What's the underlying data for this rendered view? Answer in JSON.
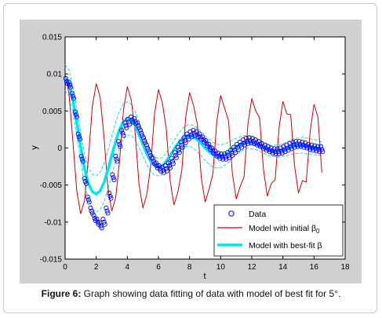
{
  "chart_data": {
    "type": "scatter",
    "xlabel": "t",
    "ylabel": "y",
    "xlim": [
      0,
      18
    ],
    "ylim": [
      -0.015,
      0.015
    ],
    "x_ticks": [
      0,
      2,
      4,
      6,
      8,
      10,
      12,
      14,
      16,
      18
    ],
    "y_ticks": [
      -0.015,
      -0.01,
      -0.005,
      0,
      0.005,
      0.01,
      0.015
    ],
    "x_tick_labels": [
      "0",
      "2",
      "4",
      "6",
      "8",
      "10",
      "12",
      "14",
      "16",
      "18"
    ],
    "y_tick_labels": [
      "-0.015",
      "-0.01",
      "-0.005",
      "0",
      "0.005",
      "0.01",
      "0.015"
    ],
    "grid": false,
    "legend_position": "bottom-right",
    "series": [
      {
        "name": "Data",
        "type": "scatter",
        "marker": "circle",
        "color": "#0000ff",
        "x": [
          0.1,
          0.3,
          0.5,
          0.7,
          0.9,
          1.1,
          1.3,
          1.5,
          1.7,
          1.9,
          2.1,
          2.3,
          2.5,
          2.7,
          2.9,
          3.1,
          3.3,
          3.5,
          3.7,
          3.9,
          4.1,
          4.3,
          4.5,
          4.7,
          4.9,
          5.1,
          5.3,
          5.5,
          5.7,
          5.9,
          6.1,
          6.3,
          6.5,
          6.7,
          6.9,
          7.1,
          7.3,
          7.5,
          7.7,
          7.9,
          8.1,
          8.3,
          8.5,
          8.7,
          8.9,
          9.1,
          9.3,
          9.5,
          9.7,
          9.9,
          10.1,
          10.3,
          10.5,
          10.7,
          10.9,
          11.1,
          11.3,
          11.5,
          11.7,
          11.9,
          12.1,
          12.3,
          12.5,
          12.7,
          12.9,
          13.1,
          13.3,
          13.5,
          13.7,
          13.9,
          14.1,
          14.3,
          14.5,
          14.7,
          14.9,
          15.1,
          15.3,
          15.5,
          15.7,
          15.9,
          16.1,
          16.3,
          16.5
        ],
        "y": [
          0.009,
          0.0085,
          0.007,
          0.0045,
          0.0015,
          -0.0015,
          -0.0045,
          -0.007,
          -0.0085,
          -0.0095,
          -0.01,
          -0.0105,
          -0.01,
          -0.0085,
          -0.0065,
          -0.004,
          -0.0015,
          0.0005,
          0.002,
          0.003,
          0.0035,
          0.0038,
          0.0036,
          0.003,
          0.002,
          0.001,
          0.0,
          -0.001,
          -0.0018,
          -0.0024,
          -0.0028,
          -0.003,
          -0.0028,
          -0.0024,
          -0.0018,
          -0.001,
          -0.0003,
          0.0004,
          0.001,
          0.0015,
          0.0018,
          0.002,
          0.0018,
          0.0015,
          0.0011,
          0.0006,
          0.0001,
          -0.0004,
          -0.0008,
          -0.0011,
          -0.0012,
          -0.0012,
          -0.001,
          -0.0007,
          -0.0003,
          0.0001,
          0.0004,
          0.0007,
          0.0009,
          0.001,
          0.0009,
          0.0007,
          0.0005,
          0.0002,
          0.0,
          -0.0002,
          -0.0004,
          -0.0005,
          -0.0005,
          -0.0004,
          -0.0002,
          0.0,
          0.0002,
          0.0004,
          0.0005,
          0.0005,
          0.0004,
          0.0003,
          0.0001,
          0.0,
          -0.0001,
          -0.0002,
          -0.0002
        ]
      },
      {
        "name": "Model with initial β0",
        "type": "line",
        "color": "#d00000",
        "x": [
          0,
          0.25,
          0.5,
          0.75,
          1.0,
          1.25,
          1.5,
          1.75,
          2.0,
          2.25,
          2.5,
          2.75,
          3.0,
          3.25,
          3.5,
          3.75,
          4.0,
          4.25,
          4.5,
          4.75,
          5.0,
          5.25,
          5.5,
          5.75,
          6.0,
          6.25,
          6.5,
          6.75,
          7.0,
          7.25,
          7.5,
          7.75,
          8.0,
          8.25,
          8.5,
          8.75,
          9.0,
          9.25,
          9.5,
          9.75,
          10.0,
          10.25,
          10.5,
          10.75,
          11.0,
          11.25,
          11.5,
          11.75,
          12.0,
          12.25,
          12.5,
          12.75,
          13.0,
          13.25,
          13.5,
          13.75,
          14.0,
          14.25,
          14.5,
          14.75,
          15.0,
          15.25,
          15.5,
          15.75,
          16.0,
          16.25,
          16.5
        ],
        "y": [
          0.01,
          0.0073,
          0.0009,
          -0.0058,
          -0.0089,
          -0.0071,
          -0.0012,
          0.0056,
          0.0087,
          0.0069,
          0.0015,
          -0.0053,
          -0.0085,
          -0.0067,
          -0.0018,
          0.0051,
          0.0083,
          0.0065,
          0.0021,
          -0.0049,
          -0.0081,
          -0.0063,
          -0.0024,
          0.0046,
          0.0079,
          0.0061,
          0.0027,
          -0.0044,
          -0.0077,
          -0.0059,
          -0.003,
          0.0041,
          0.0075,
          0.0058,
          0.0032,
          -0.0039,
          -0.0073,
          -0.0056,
          -0.0035,
          0.0036,
          0.0071,
          0.0054,
          0.0037,
          -0.0034,
          -0.0069,
          -0.0052,
          -0.0039,
          0.0032,
          0.0067,
          0.005,
          0.0041,
          -0.0029,
          -0.0065,
          -0.0048,
          -0.0043,
          0.0027,
          0.0063,
          0.0046,
          0.0045,
          -0.0024,
          -0.0061,
          -0.0044,
          -0.0046,
          0.0022,
          0.0059,
          0.0042,
          -0.0033
        ]
      },
      {
        "name": "Model with best-fit β",
        "type": "line",
        "color": "#00e5ee",
        "x": [
          0,
          0.25,
          0.5,
          0.75,
          1.0,
          1.25,
          1.5,
          1.75,
          2.0,
          2.25,
          2.5,
          2.75,
          3.0,
          3.25,
          3.5,
          3.75,
          4.0,
          4.25,
          4.5,
          4.75,
          5.0,
          5.25,
          5.5,
          5.75,
          6.0,
          6.25,
          6.5,
          6.75,
          7.0,
          7.25,
          7.5,
          7.75,
          8.0,
          8.25,
          8.5,
          8.75,
          9.0,
          9.25,
          9.5,
          9.75,
          10.0,
          10.25,
          10.5,
          10.75,
          11.0,
          11.25,
          11.5,
          11.75,
          12.0,
          12.25,
          12.5,
          12.75,
          13.0,
          13.25,
          13.5,
          13.75,
          14.0,
          14.25,
          14.5,
          14.75,
          15.0,
          15.25,
          15.5,
          15.75,
          16.0,
          16.25,
          16.5
        ],
        "y": [
          0.0095,
          0.0088,
          0.0065,
          0.0035,
          0.0002,
          -0.0028,
          -0.0048,
          -0.0059,
          -0.0062,
          -0.0058,
          -0.0047,
          -0.003,
          -0.001,
          0.0009,
          0.0025,
          0.0036,
          0.004,
          0.0038,
          0.003,
          0.0018,
          0.0005,
          -0.0008,
          -0.0018,
          -0.0024,
          -0.0026,
          -0.0024,
          -0.0018,
          -0.001,
          -0.0002,
          0.0006,
          0.0012,
          0.0016,
          0.0017,
          0.0015,
          0.0011,
          0.0006,
          0.0,
          -0.0005,
          -0.0009,
          -0.0011,
          -0.0011,
          -0.0009,
          -0.0006,
          -0.0002,
          0.0002,
          0.0005,
          0.0007,
          0.0008,
          0.0007,
          0.0005,
          0.0003,
          0.0,
          -0.0002,
          -0.0004,
          -0.0004,
          -0.0004,
          -0.0003,
          -0.0001,
          0.0001,
          0.0003,
          0.0003,
          0.0004,
          0.0003,
          0.0002,
          0.0001,
          0.0,
          -0.0001
        ]
      }
    ],
    "confidence_band_color": "#00d8e8"
  },
  "legend": {
    "data_label": "Data",
    "initial_label_main": "Model with initial β",
    "initial_label_sub": "0",
    "bestfit_label": "Model with best-fit β"
  },
  "caption": {
    "bold": "Figure 6:",
    "text": " Graph showing data fitting of data with model of best fit for 5°."
  }
}
